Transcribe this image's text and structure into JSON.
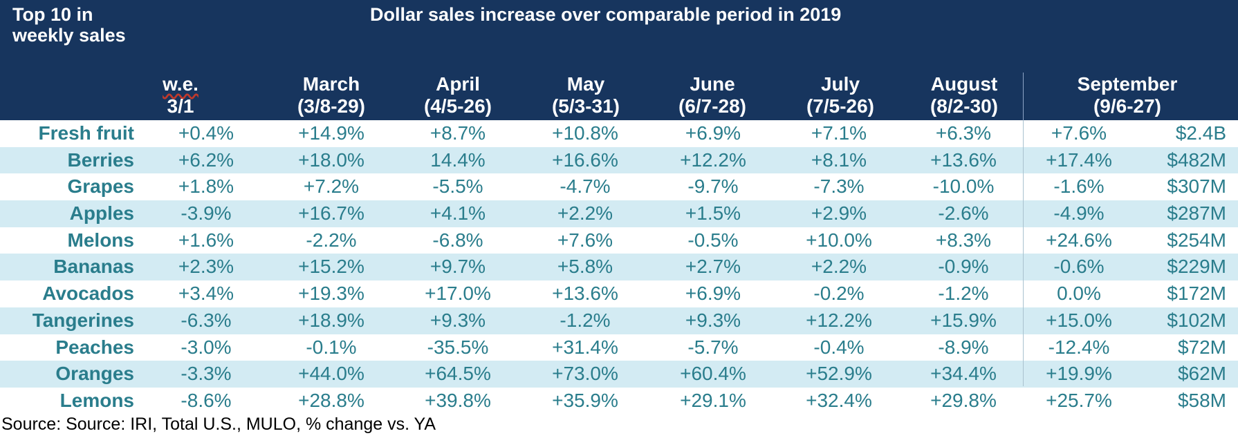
{
  "header": {
    "title": "Top 10 in weekly sales",
    "banner": "Dollar sales increase over comparable period in 2019",
    "columns": [
      {
        "line1": "w.e.",
        "line2": "3/1"
      },
      {
        "line1": "March",
        "line2": "(3/8-29)"
      },
      {
        "line1": "April",
        "line2": "(4/5-26)"
      },
      {
        "line1": "May",
        "line2": "(5/3-31)"
      },
      {
        "line1": "June",
        "line2": "(6/7-28)"
      },
      {
        "line1": "July",
        "line2": "(7/5-26)"
      },
      {
        "line1": "August",
        "line2": "(8/2-30)"
      },
      {
        "line1": "September",
        "line2": "(9/6-27)"
      }
    ]
  },
  "rows": [
    {
      "label": "Fresh fruit",
      "values": [
        "+0.4%",
        "+14.9%",
        "+8.7%",
        "+10.8%",
        "+6.9%",
        "+7.1%",
        "+6.3%",
        "+7.6%"
      ],
      "total": "$2.4B"
    },
    {
      "label": "Berries",
      "values": [
        "+6.2%",
        "+18.0%",
        "14.4%",
        "+16.6%",
        "+12.2%",
        "+8.1%",
        "+13.6%",
        "+17.4%"
      ],
      "total": "$482M"
    },
    {
      "label": "Grapes",
      "values": [
        "+1.8%",
        "+7.2%",
        "-5.5%",
        "-4.7%",
        "-9.7%",
        "-7.3%",
        "-10.0%",
        "-1.6%"
      ],
      "total": "$307M"
    },
    {
      "label": "Apples",
      "values": [
        "-3.9%",
        "+16.7%",
        "+4.1%",
        "+2.2%",
        "+1.5%",
        "+2.9%",
        "-2.6%",
        "-4.9%"
      ],
      "total": "$287M"
    },
    {
      "label": "Melons",
      "values": [
        "+1.6%",
        "-2.2%",
        "-6.8%",
        "+7.6%",
        "-0.5%",
        "+10.0%",
        "+8.3%",
        "+24.6%"
      ],
      "total": "$254M"
    },
    {
      "label": "Bananas",
      "values": [
        "+2.3%",
        "+15.2%",
        "+9.7%",
        "+5.8%",
        "+2.7%",
        "+2.2%",
        "-0.9%",
        "-0.6%"
      ],
      "total": "$229M"
    },
    {
      "label": "Avocados",
      "values": [
        "+3.4%",
        "+19.3%",
        "+17.0%",
        "+13.6%",
        "+6.9%",
        "-0.2%",
        "-1.2%",
        "0.0%"
      ],
      "total": "$172M"
    },
    {
      "label": "Tangerines",
      "values": [
        "-6.3%",
        "+18.9%",
        "+9.3%",
        "-1.2%",
        "+9.3%",
        "+12.2%",
        "+15.9%",
        "+15.0%"
      ],
      "total": "$102M"
    },
    {
      "label": "Peaches",
      "values": [
        "-3.0%",
        "-0.1%",
        "-35.5%",
        "+31.4%",
        "-5.7%",
        "-0.4%",
        "-8.9%",
        "-12.4%"
      ],
      "total": "$72M"
    },
    {
      "label": "Oranges",
      "values": [
        "-3.3%",
        "+44.0%",
        "+64.5%",
        "+73.0%",
        "+60.4%",
        "+52.9%",
        "+34.4%",
        "+19.9%"
      ],
      "total": "$62M"
    },
    {
      "label": "Lemons",
      "values": [
        "-8.6%",
        "+28.8%",
        "+39.8%",
        "+35.9%",
        "+29.1%",
        "+32.4%",
        "+29.8%",
        "+25.7%"
      ],
      "total": "$58M"
    }
  ],
  "source": "Source: Source: IRI, Total U.S., MULO, % change vs. YA",
  "colors": {
    "header_bg": "#17355e",
    "header_text": "#ffffff",
    "row_alt_bg": "#d3ebf3",
    "cell_text": "#2a7d8c"
  }
}
